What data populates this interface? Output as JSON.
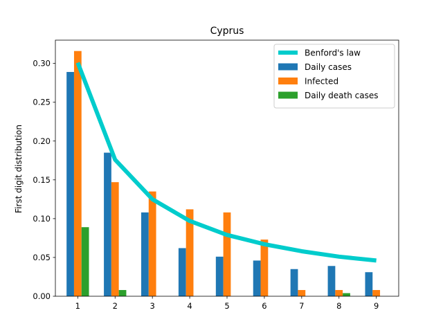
{
  "chart_data": {
    "type": "bar",
    "title": "Cyprus",
    "xlabel": "",
    "ylabel": "First digit distribution",
    "categories": [
      "1",
      "2",
      "3",
      "4",
      "5",
      "6",
      "7",
      "8",
      "9"
    ],
    "x": [
      1,
      2,
      3,
      4,
      5,
      6,
      7,
      8,
      9
    ],
    "ylim": [
      0,
      0.33
    ],
    "xlim": [
      0.4,
      9.6
    ],
    "yticks": [
      0.0,
      0.05,
      0.1,
      0.15,
      0.2,
      0.25,
      0.3
    ],
    "ytick_labels": [
      "0.00",
      "0.05",
      "0.10",
      "0.15",
      "0.20",
      "0.25",
      "0.30"
    ],
    "grid": false,
    "legend_position": "top-right",
    "bar_series": [
      {
        "name": "Daily cases",
        "color": "#1f77b4",
        "values": [
          0.289,
          0.185,
          0.108,
          0.062,
          0.051,
          0.046,
          0.035,
          0.039,
          0.031
        ]
      },
      {
        "name": "Infected",
        "color": "#ff7f0e",
        "values": [
          0.316,
          0.147,
          0.135,
          0.112,
          0.108,
          0.073,
          0.008,
          0.008,
          0.008
        ]
      },
      {
        "name": "Daily death cases",
        "color": "#2ca02c",
        "values": [
          0.089,
          0.008,
          0,
          0,
          0,
          0,
          0,
          0.004,
          0
        ]
      }
    ],
    "line_series": {
      "name": "Benford's law",
      "color": "#00cccc",
      "values": [
        0.301,
        0.176,
        0.125,
        0.097,
        0.079,
        0.067,
        0.058,
        0.051,
        0.046
      ]
    }
  }
}
